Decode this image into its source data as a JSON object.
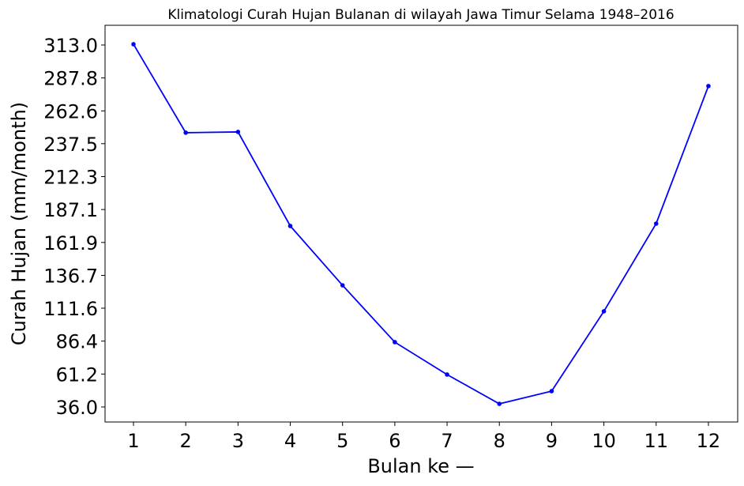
{
  "chart_data": {
    "type": "line",
    "title": "Klimatologi Curah Hujan Bulanan di wilayah Jawa Timur Selama 1948–2016",
    "x_label": "Bulan ke —",
    "y_label": "Curah Hujan (mm/month)",
    "x": [
      1,
      2,
      3,
      4,
      5,
      6,
      7,
      8,
      9,
      10,
      11,
      12
    ],
    "series": [
      {
        "color": "#0000ff",
        "values": [
          313.6,
          245.9,
          246.5,
          174.5,
          129.1,
          85.6,
          60.8,
          38.4,
          48.1,
          109.2,
          176.3,
          281.6
        ]
      }
    ],
    "xlim": [
      0.456,
      12.56
    ],
    "xticks": [
      1,
      2,
      3,
      4,
      5,
      6,
      7,
      8,
      9,
      10,
      11,
      12
    ],
    "ylim": [
      24.5,
      328.1
    ],
    "yticks": [
      {
        "value": 36,
        "label": "36.0"
      },
      61.2,
      86.4,
      111.6,
      136.7,
      161.9,
      187.1,
      212.3,
      237.5,
      262.6,
      287.8,
      {
        "value": 313,
        "label": "313.0"
      }
    ],
    "grid": false
  }
}
